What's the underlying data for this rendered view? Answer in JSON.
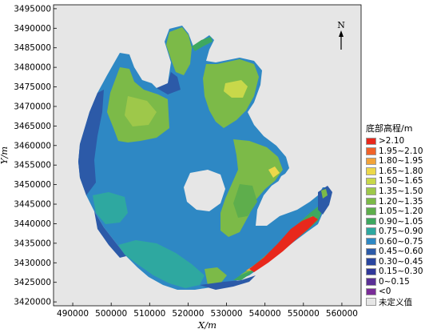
{
  "chart_data": {
    "type": "heatmap",
    "xlabel": "X/m",
    "ylabel": "Y/m",
    "xlim": [
      485000,
      565000
    ],
    "ylim": [
      3419000,
      3496000
    ],
    "x_ticks": [
      "490000",
      "500000",
      "510000",
      "520000",
      "530000",
      "540000",
      "550000",
      "560000"
    ],
    "y_ticks": [
      "3495000",
      "3490000",
      "3485000",
      "3480000",
      "3475000",
      "3470000",
      "3465000",
      "3460000",
      "3455000",
      "3450000",
      "3445000",
      "3440000",
      "3435000",
      "3430000",
      "3425000",
      "3420000"
    ],
    "north_label": "N",
    "legend_title": "底部高程/m",
    "legend_items": [
      {
        "label": ">2.10",
        "color": "#e8281c"
      },
      {
        "label": "1.95~2.10",
        "color": "#f0622a"
      },
      {
        "label": "1.80~1.95",
        "color": "#f2a33a"
      },
      {
        "label": "1.65~1.80",
        "color": "#ecd84a"
      },
      {
        "label": "1.50~1.65",
        "color": "#c8d84a"
      },
      {
        "label": "1.35~1.50",
        "color": "#9ec84a"
      },
      {
        "label": "1.20~1.35",
        "color": "#7cba48"
      },
      {
        "label": "1.05~1.20",
        "color": "#5eae4c"
      },
      {
        "label": "0.90~1.05",
        "color": "#3ea860"
      },
      {
        "label": "0.75~0.90",
        "color": "#2ea8a0"
      },
      {
        "label": "0.60~0.75",
        "color": "#2e88c4"
      },
      {
        "label": "0.45~0.60",
        "color": "#2c5aa8"
      },
      {
        "label": "0.30~0.45",
        "color": "#2a46a0"
      },
      {
        "label": "0.15~0.30",
        "color": "#30389a"
      },
      {
        "label": "0~0.15",
        "color": "#5a3096"
      },
      {
        "label": "<0",
        "color": "#7a2c98"
      },
      {
        "label": "未定义值",
        "color": "#e6e6e6"
      }
    ]
  }
}
